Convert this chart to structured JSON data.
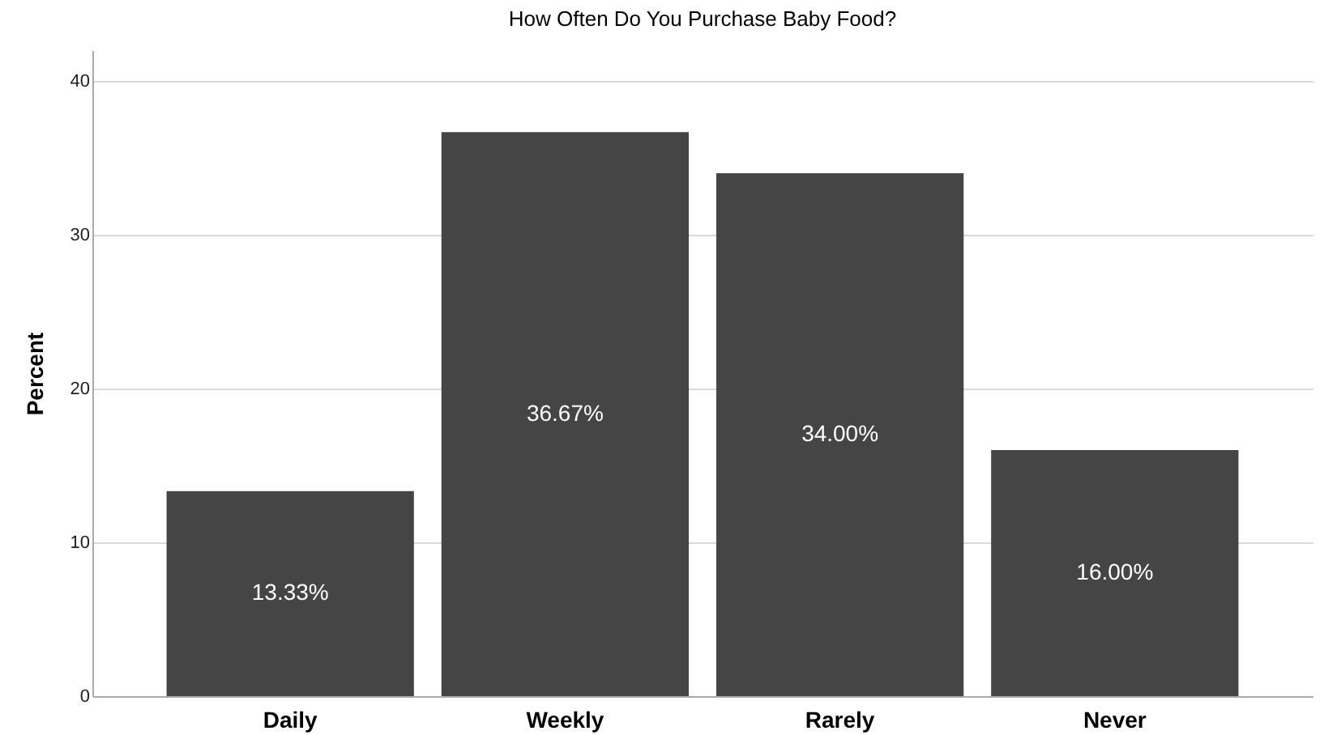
{
  "chart_data": {
    "type": "bar",
    "title": "How Often Do You Purchase Baby Food?",
    "ylabel": "Percent",
    "categories": [
      "Daily",
      "Weekly",
      "Rarely",
      "Never"
    ],
    "values": [
      13.33,
      36.67,
      34.0,
      16.0
    ],
    "value_labels": [
      "13.33%",
      "36.67%",
      "34.00%",
      "16.00%"
    ],
    "color": "#454545",
    "ylim": [
      0,
      42
    ],
    "yticks": [
      0,
      10,
      20,
      30,
      40
    ],
    "grid": "y"
  }
}
